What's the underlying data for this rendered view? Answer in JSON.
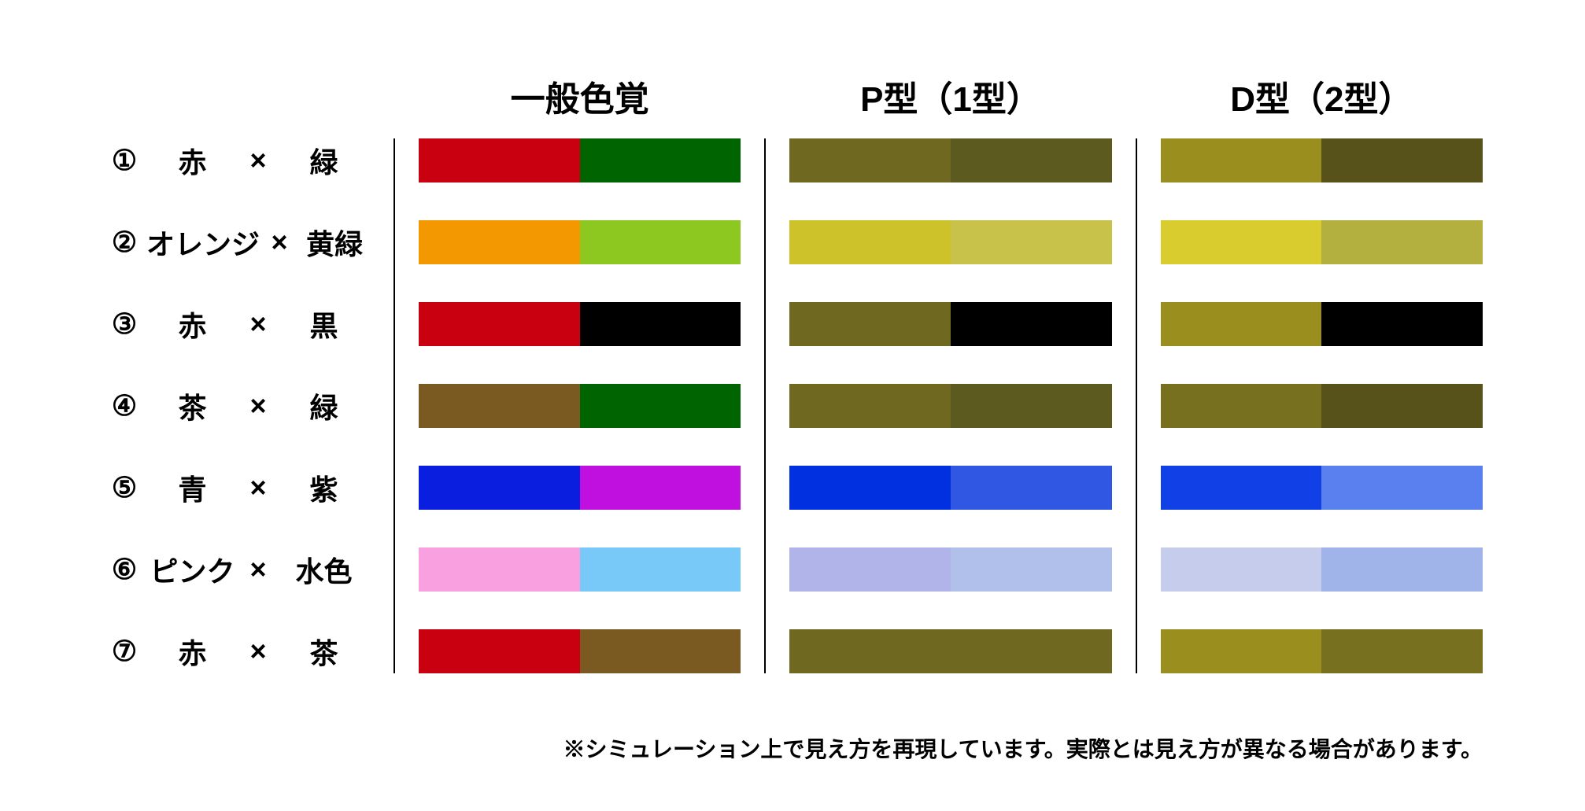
{
  "headers": {
    "col1": "一般色覚",
    "col2": "P型（1型）",
    "col3": "D型（2型）"
  },
  "header_fontsize": 44,
  "label_fontsize": 36,
  "swatch_height": 56,
  "row_gap": 48,
  "background_color": "#ffffff",
  "divider_color": "#000000",
  "rows": [
    {
      "num": "①",
      "color1_label": "赤",
      "separator": "×",
      "color2_label": "緑",
      "normal": {
        "left": "#c8000f",
        "right": "#006400"
      },
      "p_type": {
        "left": "#6e6820",
        "right": "#5d5a20"
      },
      "d_type": {
        "left": "#9a8e1e",
        "right": "#57511a"
      }
    },
    {
      "num": "②",
      "color1_label": "オレンジ",
      "separator": "×",
      "color2_label": "黄緑",
      "normal": {
        "left": "#f39800",
        "right": "#8cc820"
      },
      "p_type": {
        "left": "#cdc22a",
        "right": "#c8c24a"
      },
      "d_type": {
        "left": "#d8cc2e",
        "right": "#b4b040"
      }
    },
    {
      "num": "③",
      "color1_label": "赤",
      "separator": "×",
      "color2_label": "黒",
      "normal": {
        "left": "#c8000f",
        "right": "#000000"
      },
      "p_type": {
        "left": "#6e6820",
        "right": "#000000"
      },
      "d_type": {
        "left": "#9a8e1e",
        "right": "#000000"
      }
    },
    {
      "num": "④",
      "color1_label": "茶",
      "separator": "×",
      "color2_label": "緑",
      "normal": {
        "left": "#7a5a20",
        "right": "#006400"
      },
      "p_type": {
        "left": "#6e6820",
        "right": "#5d5a20"
      },
      "d_type": {
        "left": "#76701f",
        "right": "#57511a"
      }
    },
    {
      "num": "⑤",
      "color1_label": "青",
      "separator": "×",
      "color2_label": "紫",
      "normal": {
        "left": "#0a1ee0",
        "right": "#c010e0"
      },
      "p_type": {
        "left": "#0030e0",
        "right": "#3056e4"
      },
      "d_type": {
        "left": "#1040e6",
        "right": "#5a80f0"
      }
    },
    {
      "num": "⑥",
      "color1_label": "ピンク",
      "separator": "×",
      "color2_label": "水色",
      "normal": {
        "left": "#f8a0e0",
        "right": "#78c8f8"
      },
      "p_type": {
        "left": "#b0b4e8",
        "right": "#b0c0ea"
      },
      "d_type": {
        "left": "#c6cceb",
        "right": "#a0b4ea"
      }
    },
    {
      "num": "⑦",
      "color1_label": "赤",
      "separator": "×",
      "color2_label": "茶",
      "normal": {
        "left": "#c8000f",
        "right": "#7a5a20"
      },
      "p_type": {
        "left": "#6e6820",
        "right": "#6e6820"
      },
      "d_type": {
        "left": "#9a8e1e",
        "right": "#76701f"
      }
    }
  ],
  "footnote": "※シミュレーション上で見え方を再現しています。実際とは見え方が異なる場合があります。"
}
